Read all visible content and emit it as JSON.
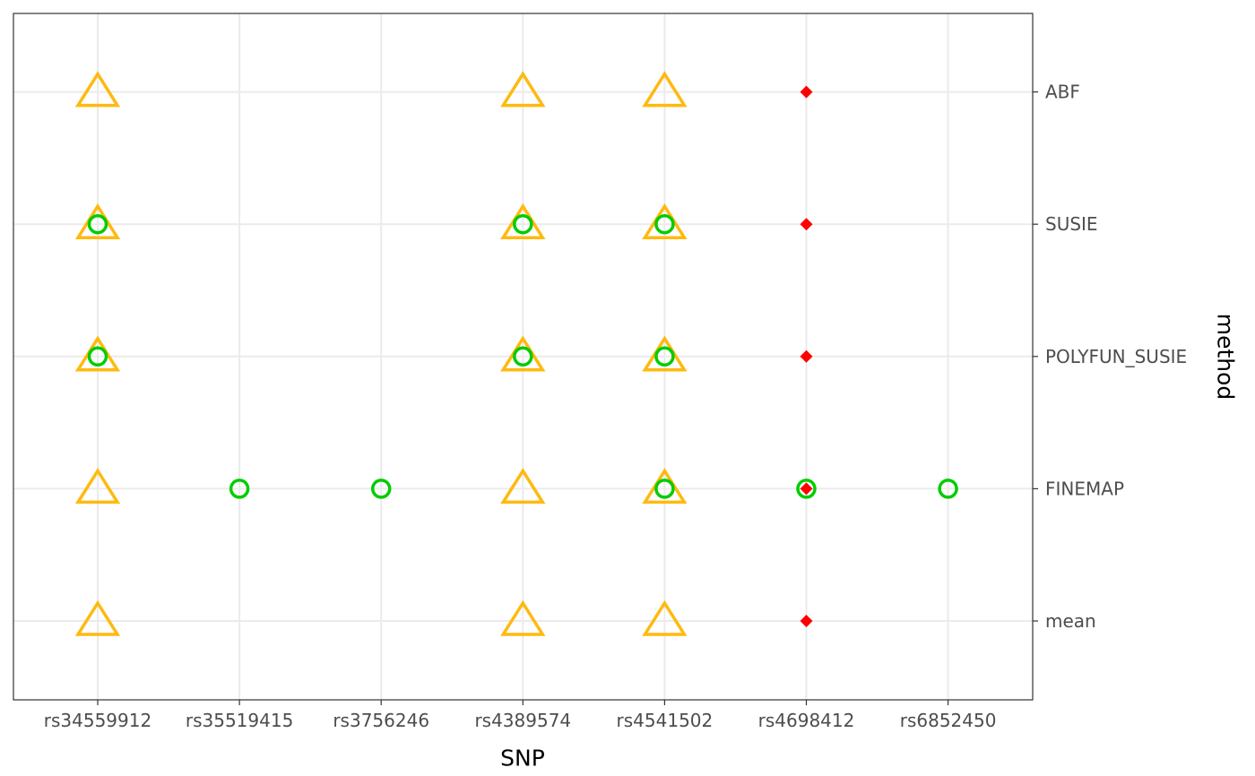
{
  "chart_data": {
    "type": "scatter",
    "xlabel": "SNP",
    "ylabel": "method",
    "x_categories": [
      "rs34559912",
      "rs35519415",
      "rs3756246",
      "rs4389574",
      "rs4541502",
      "rs4698412",
      "rs6852450"
    ],
    "y_categories": [
      "mean",
      "FINEMAP",
      "POLYFUN_SUSIE",
      "SUSIE",
      "ABF"
    ],
    "grid": true,
    "legend": "none",
    "series": [
      {
        "marker": "triangle-open",
        "color": "#FFB90F",
        "points": [
          {
            "x": "rs34559912",
            "y": "ABF"
          },
          {
            "x": "rs4389574",
            "y": "ABF"
          },
          {
            "x": "rs4541502",
            "y": "ABF"
          },
          {
            "x": "rs34559912",
            "y": "SUSIE"
          },
          {
            "x": "rs4389574",
            "y": "SUSIE"
          },
          {
            "x": "rs4541502",
            "y": "SUSIE"
          },
          {
            "x": "rs34559912",
            "y": "POLYFUN_SUSIE"
          },
          {
            "x": "rs4389574",
            "y": "POLYFUN_SUSIE"
          },
          {
            "x": "rs4541502",
            "y": "POLYFUN_SUSIE"
          },
          {
            "x": "rs34559912",
            "y": "FINEMAP"
          },
          {
            "x": "rs4389574",
            "y": "FINEMAP"
          },
          {
            "x": "rs4541502",
            "y": "FINEMAP"
          },
          {
            "x": "rs34559912",
            "y": "mean"
          },
          {
            "x": "rs4389574",
            "y": "mean"
          },
          {
            "x": "rs4541502",
            "y": "mean"
          }
        ]
      },
      {
        "marker": "circle-open",
        "color": "#00CD00",
        "points": [
          {
            "x": "rs34559912",
            "y": "SUSIE"
          },
          {
            "x": "rs4389574",
            "y": "SUSIE"
          },
          {
            "x": "rs4541502",
            "y": "SUSIE"
          },
          {
            "x": "rs34559912",
            "y": "POLYFUN_SUSIE"
          },
          {
            "x": "rs4389574",
            "y": "POLYFUN_SUSIE"
          },
          {
            "x": "rs4541502",
            "y": "POLYFUN_SUSIE"
          },
          {
            "x": "rs35519415",
            "y": "FINEMAP"
          },
          {
            "x": "rs3756246",
            "y": "FINEMAP"
          },
          {
            "x": "rs4541502",
            "y": "FINEMAP"
          },
          {
            "x": "rs4698412",
            "y": "FINEMAP"
          },
          {
            "x": "rs6852450",
            "y": "FINEMAP"
          }
        ]
      },
      {
        "marker": "diamond-filled",
        "color": "#FF0000",
        "points": [
          {
            "x": "rs4698412",
            "y": "ABF"
          },
          {
            "x": "rs4698412",
            "y": "SUSIE"
          },
          {
            "x": "rs4698412",
            "y": "POLYFUN_SUSIE"
          },
          {
            "x": "rs4698412",
            "y": "FINEMAP"
          },
          {
            "x": "rs4698412",
            "y": "mean"
          }
        ]
      }
    ]
  }
}
